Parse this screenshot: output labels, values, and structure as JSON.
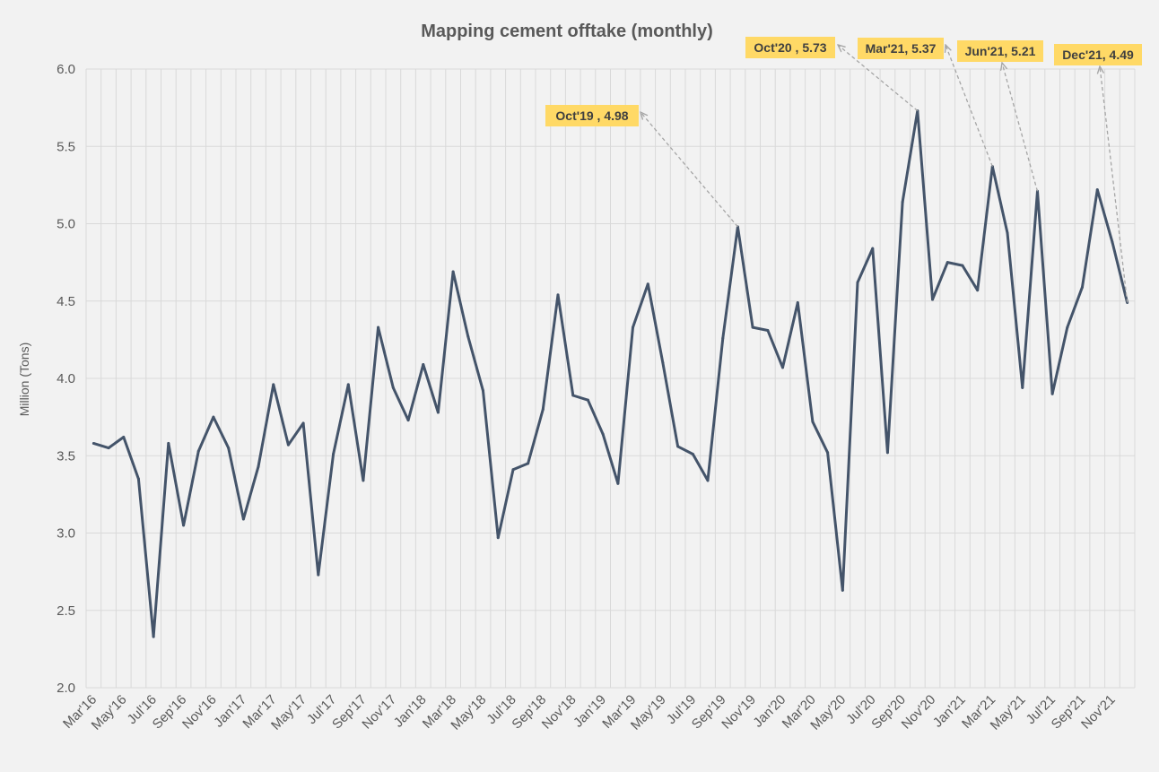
{
  "chart_data": {
    "type": "line",
    "title": "Mapping cement offtake (monthly)",
    "xlabel": "",
    "ylabel": "Million (Tons)",
    "ylim": [
      2.0,
      6.0
    ],
    "yticks": [
      "2.0",
      "2.5",
      "3.0",
      "3.5",
      "4.0",
      "4.5",
      "5.0",
      "5.5",
      "6.0"
    ],
    "grid": true,
    "categories": [
      "Mar'16",
      "Apr'16",
      "May'16",
      "Jun'16",
      "Jul'16",
      "Aug'16",
      "Sep'16",
      "Oct'16",
      "Nov'16",
      "Dec'16",
      "Jan'17",
      "Feb'17",
      "Mar'17",
      "Apr'17",
      "May'17",
      "Jun'17",
      "Jul'17",
      "Aug'17",
      "Sep'17",
      "Oct'17",
      "Nov'17",
      "Dec'17",
      "Jan'18",
      "Feb'18",
      "Mar'18",
      "Apr'18",
      "May'18",
      "Jun'18",
      "Jul'18",
      "Aug'18",
      "Sep'18",
      "Oct'18",
      "Nov'18",
      "Dec'18",
      "Jan'19",
      "Feb'19",
      "Mar'19",
      "Apr'19",
      "May'19",
      "Jun'19",
      "Jul'19",
      "Aug'19",
      "Sep'19",
      "Oct'19",
      "Nov'19",
      "Dec'19",
      "Jan'20",
      "Feb'20",
      "Mar'20",
      "Apr'20",
      "May'20",
      "Jun'20",
      "Jul'20",
      "Aug'20",
      "Sep'20",
      "Oct'20",
      "Nov'20",
      "Dec'20",
      "Jan'21",
      "Feb'21",
      "Mar'21",
      "Apr'21",
      "May'21",
      "Jun'21",
      "Jul'21",
      "Aug'21",
      "Sep'21",
      "Oct'21",
      "Nov'21",
      "Dec'21"
    ],
    "tick_labels": [
      "Mar'16",
      "May'16",
      "Jul'16",
      "Sep'16",
      "Nov'16",
      "Jan'17",
      "Mar'17",
      "May'17",
      "Jul'17",
      "Sep'17",
      "Nov'17",
      "Jan'18",
      "Mar'18",
      "May'18",
      "Jul'18",
      "Sep'18",
      "Nov'18",
      "Jan'19",
      "Mar'19",
      "May'19",
      "Jul'19",
      "Sep'19",
      "Nov'19",
      "Jan'20",
      "Mar'20",
      "May'20",
      "Jul'20",
      "Sep'20",
      "Nov'20",
      "Jan'21",
      "Mar'21",
      "May'21",
      "Jul'21",
      "Sep'21",
      "Nov'21"
    ],
    "series": [
      {
        "values": [
          3.58,
          3.55,
          3.62,
          3.35,
          2.33,
          3.58,
          3.05,
          3.53,
          3.75,
          3.55,
          3.09,
          3.43,
          3.96,
          3.57,
          3.71,
          2.73,
          3.51,
          3.96,
          3.34,
          4.33,
          3.94,
          3.73,
          4.09,
          3.78,
          4.69,
          4.27,
          3.92,
          2.97,
          3.41,
          3.45,
          3.8,
          4.54,
          3.89,
          3.86,
          3.64,
          3.32,
          4.33,
          4.61,
          4.1,
          3.56,
          3.51,
          3.34,
          4.26,
          4.98,
          4.33,
          4.31,
          4.07,
          4.49,
          3.72,
          3.52,
          2.63,
          4.62,
          4.84,
          3.52,
          5.14,
          5.73,
          4.51,
          4.75,
          4.73,
          4.57,
          5.37,
          4.94,
          3.94,
          5.21,
          3.9,
          4.33,
          4.59,
          5.22,
          4.88,
          4.49
        ],
        "color": "#44546a"
      }
    ],
    "annotations": [
      {
        "index": 43,
        "text": "Oct'19 , 4.98"
      },
      {
        "index": 55,
        "text": "Oct'20 , 5.73"
      },
      {
        "index": 60,
        "text": "Mar'21, 5.37"
      },
      {
        "index": 63,
        "text": "Jun'21, 5.21"
      },
      {
        "index": 69,
        "text": "Dec'21, 4.49"
      }
    ],
    "annotation_color": "#ffd966"
  }
}
